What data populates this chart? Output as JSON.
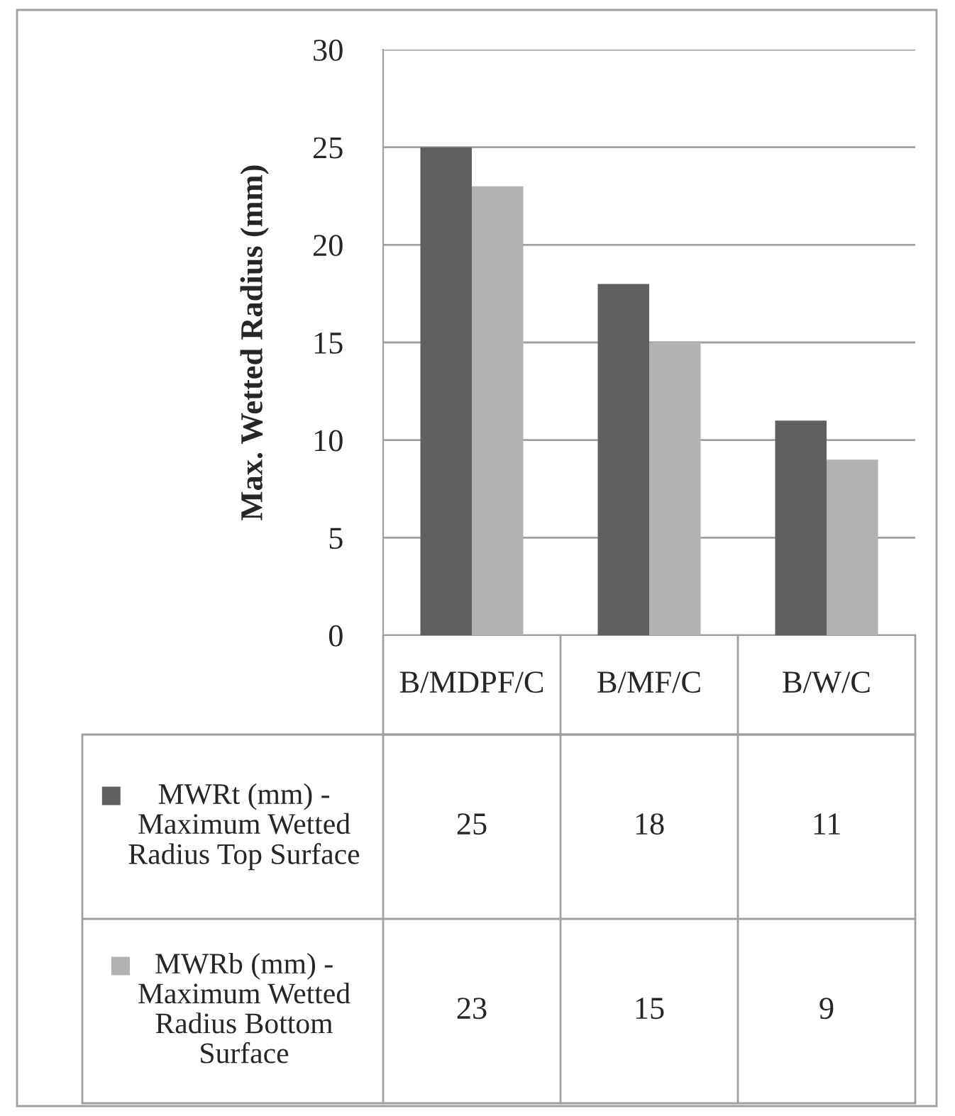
{
  "chart_data": {
    "type": "bar",
    "ylabel": "Max. Wetted Radius (mm)",
    "categories": [
      "B/MDPF/C",
      "B/MF/C",
      "B/W/C"
    ],
    "series": [
      {
        "name": "MWRt (mm) - Maximum Wetted Radius Top Surface",
        "color": "#606060",
        "values": [
          25,
          18,
          11
        ]
      },
      {
        "name": "MWRb (mm) - Maximum Wetted Radius Bottom Surface",
        "color": "#b2b2b2",
        "values": [
          23,
          15,
          9
        ]
      }
    ],
    "ylim": [
      0,
      30
    ],
    "yticks": [
      0,
      5,
      10,
      15,
      20,
      25,
      30
    ],
    "grid": "y",
    "legend": "bottom",
    "data_labels": true
  }
}
